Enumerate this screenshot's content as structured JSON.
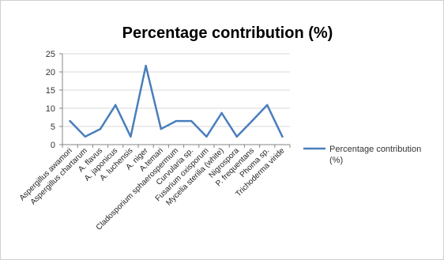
{
  "chart_data": {
    "type": "line",
    "title": "Percentage contribution (%)",
    "xlabel": "",
    "ylabel": "",
    "ylim": [
      0,
      25
    ],
    "yticks": [
      "0",
      "5",
      "10",
      "15",
      "20",
      "25"
    ],
    "grid": true,
    "legend_position": "right",
    "categories": [
      "Aspergillus awamori",
      "Aspergillus chartarum",
      "A. flavus",
      "A. japonicus",
      "A. luchensis",
      "A. niger",
      "A.temari",
      "Cladosporium sphaerospermum",
      "Curvularia sp.",
      "Fusarium oxisporum",
      "Mycelia sterilia (white)",
      "Nigrospora",
      "P. frequentans",
      "Phoma sp.",
      "Trichoderma viride"
    ],
    "series": [
      {
        "name": "Percentage contribution (%)",
        "color": "#4a7ebb",
        "values": [
          6.5,
          2.2,
          4.3,
          10.9,
          2.2,
          21.7,
          4.3,
          6.5,
          6.5,
          2.2,
          8.7,
          2.2,
          6.5,
          10.9,
          2.2
        ]
      }
    ],
    "legend_label_lines": [
      "Percentage contribution",
      "(%)"
    ]
  }
}
